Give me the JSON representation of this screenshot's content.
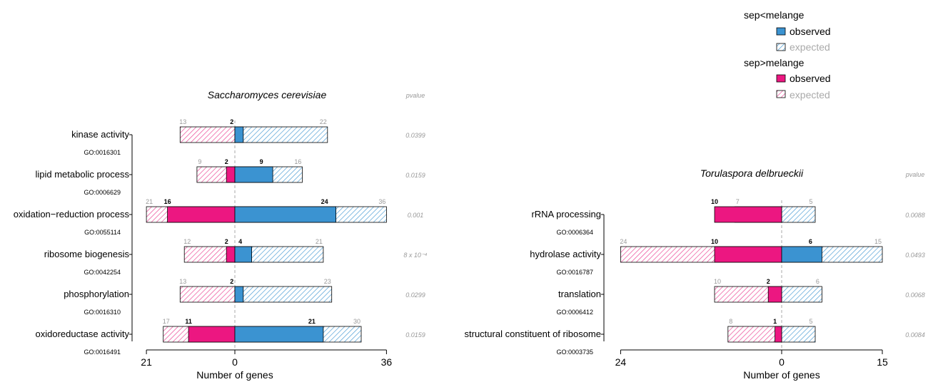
{
  "legend": {
    "groups": [
      {
        "title": "sep<melange",
        "observed_label": "observed",
        "expected_label": "expected",
        "color": "#3b93d1"
      },
      {
        "title": "sep>melange",
        "observed_label": "observed",
        "expected_label": "expected",
        "color": "#ec1781"
      }
    ]
  },
  "colors": {
    "blue": "#3b93d1",
    "pink": "#ec1781",
    "hatch_blue": "#4f9fd6",
    "hatch_pink": "#ec4a98"
  },
  "chart_data": [
    {
      "type": "bar",
      "title": "Saccharomyces cerevisiae",
      "pvalue_header": "pvalue",
      "xlabel": "Number of genes",
      "xlim_left": 21,
      "xlim_right": 36,
      "tick_labels": [
        "21",
        "0",
        "36"
      ],
      "categories": [
        {
          "label": "kinase activity",
          "go": "GO:0016301",
          "left_obs": null,
          "left_exp": 13,
          "right_obs": 2,
          "right_exp": 22,
          "pvalue": "0.0399",
          "left_exp_label": "13",
          "left_obs_label": "",
          "right_obs_label": "2",
          "right_exp_label": "22"
        },
        {
          "label": "lipid metabolic process",
          "go": "GO:0006629",
          "left_obs": 2,
          "left_exp": 9,
          "right_obs": 9,
          "right_exp": 16,
          "pvalue": "0.0159",
          "left_exp_label": "9",
          "left_obs_label": "2",
          "right_obs_label": "9",
          "right_exp_label": "16"
        },
        {
          "label": "oxidation−reduction process",
          "go": "GO:0055114",
          "left_obs": 16,
          "left_exp": 21,
          "right_obs": 24,
          "right_exp": 36,
          "pvalue": "0.001",
          "left_exp_label": "21",
          "left_obs_label": "16",
          "right_obs_label": "24",
          "right_exp_label": "36"
        },
        {
          "label": "ribosome biogenesis",
          "go": "GO:0042254",
          "left_obs": 2,
          "left_exp": 12,
          "right_obs": 4,
          "right_exp": 21,
          "pvalue": "8 x 10⁻⁴",
          "left_exp_label": "12",
          "left_obs_label": "2",
          "right_obs_label": "4",
          "right_exp_label": "21"
        },
        {
          "label": "phosphorylation",
          "go": "GO:0016310",
          "left_obs": null,
          "left_exp": 13,
          "right_obs": 2,
          "right_exp": 23,
          "pvalue": "0.0299",
          "left_exp_label": "13",
          "left_obs_label": "",
          "right_obs_label": "2",
          "right_exp_label": "23"
        },
        {
          "label": "oxidoreductase activity",
          "go": "GO:0016491",
          "left_obs": 11,
          "left_exp": 17,
          "right_obs": 21,
          "right_exp": 30,
          "pvalue": "0.0159",
          "left_exp_label": "17",
          "left_obs_label": "11",
          "right_obs_label": "21",
          "right_exp_label": "30"
        }
      ]
    },
    {
      "type": "bar",
      "title": "Torulaspora delbrueckii",
      "pvalue_header": "pvalue",
      "xlabel": "Number of genes",
      "xlim_left": 24,
      "xlim_right": 15,
      "tick_labels": [
        "24",
        "0",
        "15"
      ],
      "categories": [
        {
          "label": "rRNA processing",
          "go": "GO:0006364",
          "left_obs": 10,
          "left_exp": 7,
          "right_obs": null,
          "right_exp": 5,
          "pvalue": "0.0088",
          "left_exp_label": "7",
          "left_obs_label": "10",
          "right_obs_label": "",
          "right_exp_label": "5"
        },
        {
          "label": "hydrolase activity",
          "go": "GO:0016787",
          "left_obs": 10,
          "left_exp": 24,
          "right_obs": 6,
          "right_exp": 15,
          "pvalue": "0.0493",
          "left_exp_label": "24",
          "left_obs_label": "10",
          "right_obs_label": "6",
          "right_exp_label": "15"
        },
        {
          "label": "translation",
          "go": "GO:0006412",
          "left_obs": 2,
          "left_exp": 10,
          "right_obs": null,
          "right_exp": 6,
          "pvalue": "0.0068",
          "left_exp_label": "10",
          "left_obs_label": "2",
          "right_obs_label": "",
          "right_exp_label": "6"
        },
        {
          "label": "structural constituent of ribosome",
          "go": "GO:0003735",
          "left_obs": 1,
          "left_exp": 8,
          "right_obs": null,
          "right_exp": 5,
          "pvalue": "0.0084",
          "left_exp_label": "8",
          "left_obs_label": "1",
          "right_obs_label": "",
          "right_exp_label": "5"
        }
      ]
    }
  ]
}
